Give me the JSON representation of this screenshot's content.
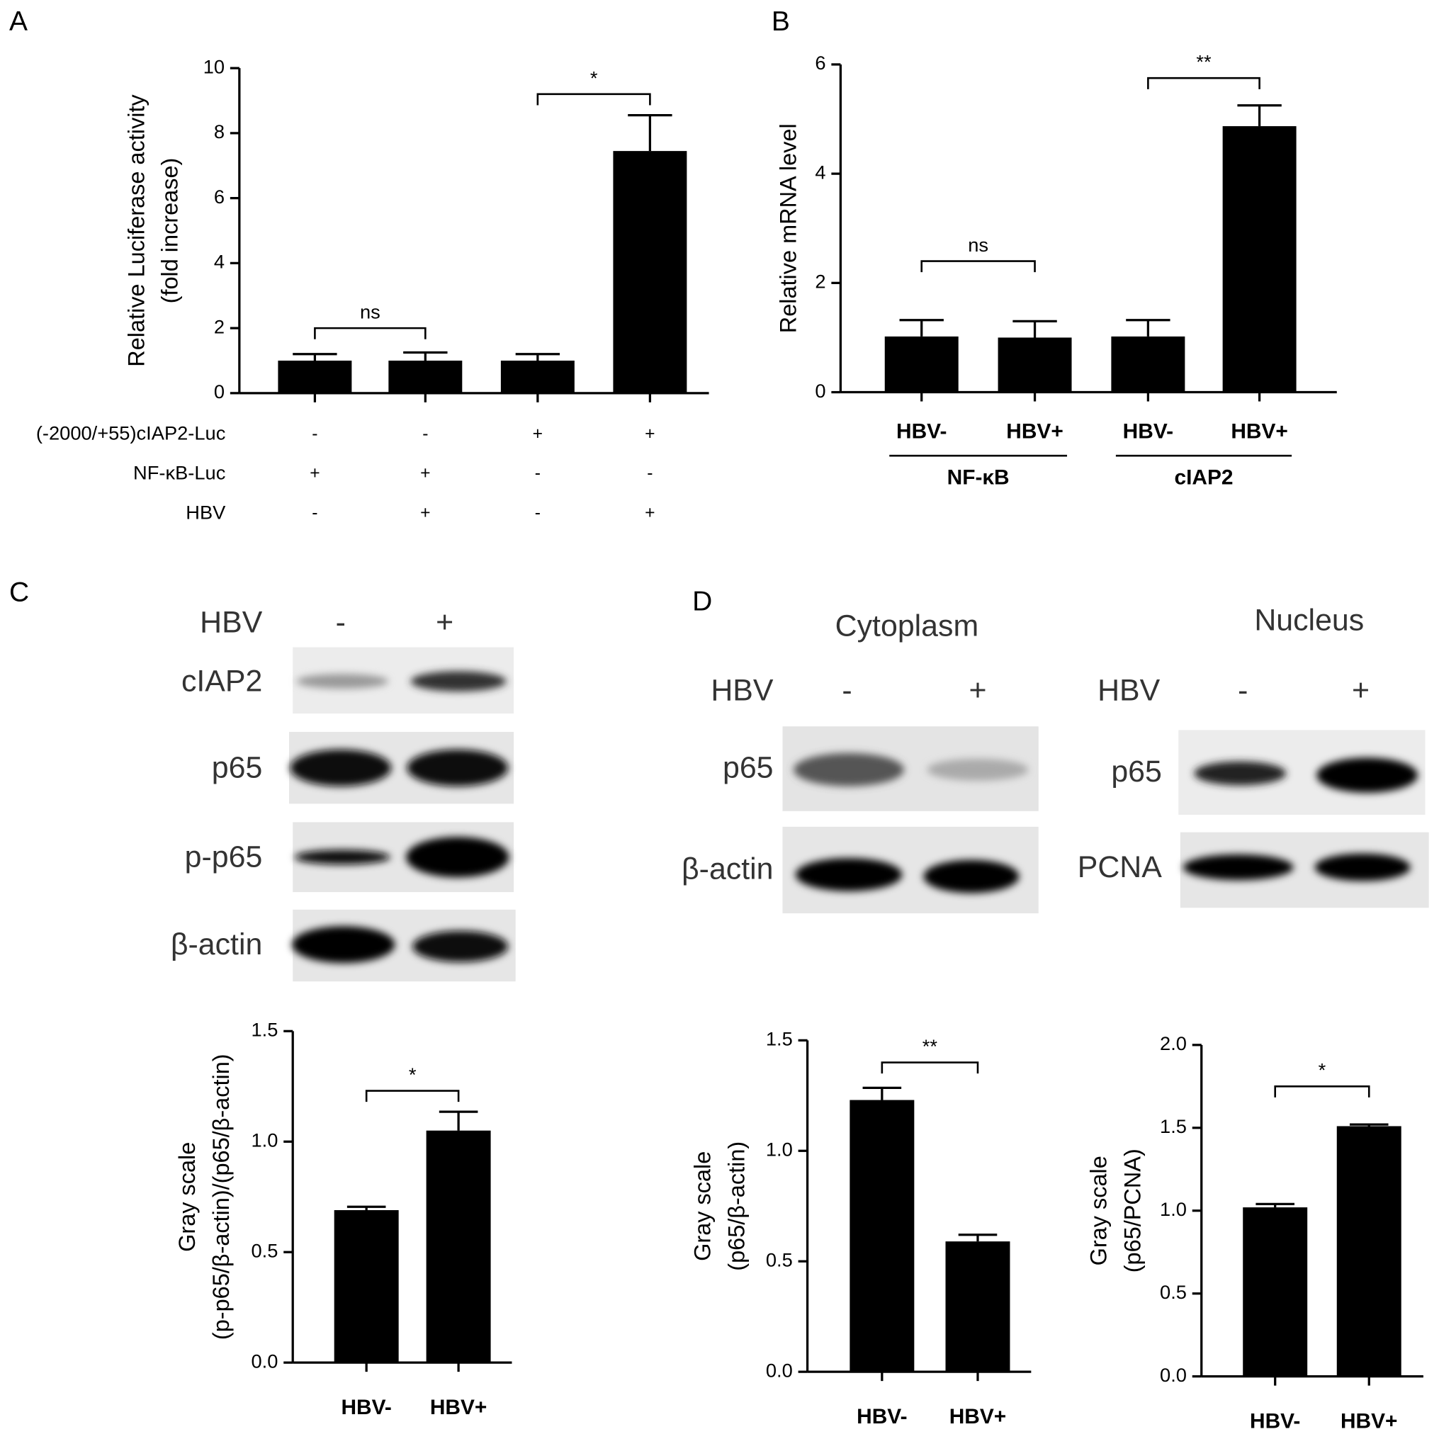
{
  "chart_data": [
    {
      "type": "bar",
      "panel": "A",
      "ylabel": [
        "Relative Luciferase activity",
        "(fold increase)"
      ],
      "values": [
        1.0,
        1.0,
        1.0,
        7.45
      ],
      "errors": [
        0.2,
        0.25,
        0.2,
        1.1
      ],
      "color": "#000000",
      "ylim": [
        0,
        10
      ],
      "yticks": [
        0,
        2,
        4,
        6,
        8,
        10
      ],
      "annotations": [
        "ns",
        "*"
      ],
      "conditions": [
        {
          "label": "(-2000/+55)cIAP2-Luc",
          "signs": [
            "-",
            "-",
            "+",
            "+"
          ]
        },
        {
          "label": "NF-κB-Luc",
          "signs": [
            "+",
            "+",
            "-",
            "-"
          ]
        },
        {
          "label": "HBV",
          "signs": [
            "-",
            "+",
            "-",
            "+"
          ]
        }
      ]
    },
    {
      "type": "bar",
      "panel": "B",
      "ylabel": [
        "Relative mRNA level"
      ],
      "categories": [
        "HBV-",
        "HBV+",
        "HBV-",
        "HBV+"
      ],
      "groups": [
        "NF-κB",
        "cIAP2"
      ],
      "values": [
        1.02,
        1.0,
        1.02,
        4.87
      ],
      "errors": [
        0.3,
        0.3,
        0.3,
        0.38
      ],
      "color": "#000000",
      "ylim": [
        0,
        6
      ],
      "yticks": [
        0,
        2,
        4,
        6
      ],
      "annotations": [
        "ns",
        "**"
      ]
    },
    {
      "type": "bar",
      "ylabel": [
        "Gray scale",
        "(p-p65/β-actin)/(p65/β-actin)"
      ],
      "categories": [
        "HBV-",
        "HBV+"
      ],
      "values": [
        0.69,
        1.05
      ],
      "errors": [
        0.015,
        0.085
      ],
      "color": "#000000",
      "ylim": [
        0,
        1.5
      ],
      "yticks": [
        {
          "value": 0,
          "label": "0.0"
        },
        {
          "value": 0.5,
          "label": "0.5"
        },
        {
          "value": 1,
          "label": "1.0"
        },
        {
          "value": 1.5,
          "label": "1.5"
        }
      ],
      "annotations": [
        "*"
      ]
    },
    {
      "type": "bar",
      "ylabel": [
        "Gray scale",
        "(p65/β-actin)"
      ],
      "categories": [
        "HBV-",
        "HBV+"
      ],
      "values": [
        1.23,
        0.59
      ],
      "errors": [
        0.055,
        0.03
      ],
      "color": "#000000",
      "ylim": [
        0,
        1.5
      ],
      "yticks": [
        {
          "value": 0,
          "label": "0.0"
        },
        {
          "value": 0.5,
          "label": "0.5"
        },
        {
          "value": 1,
          "label": "1.0"
        },
        {
          "value": 1.5,
          "label": "1.5"
        }
      ],
      "annotations": [
        "**"
      ]
    },
    {
      "type": "bar",
      "ylabel": [
        "Gray scale",
        "(p65/PCNA)"
      ],
      "categories": [
        "HBV-",
        "HBV+"
      ],
      "values": [
        1.02,
        1.51
      ],
      "errors": [
        0.02,
        0.01
      ],
      "color": "#000000",
      "ylim": [
        0,
        2
      ],
      "yticks": [
        {
          "value": 0,
          "label": "0.0"
        },
        {
          "value": 0.5,
          "label": "0.5"
        },
        {
          "value": 1,
          "label": "1.0"
        },
        {
          "value": 1.5,
          "label": "1.5"
        },
        {
          "value": 2,
          "label": "2.0"
        }
      ],
      "annotations": [
        "*"
      ]
    }
  ],
  "blot_c": {
    "panel": "C",
    "hbv": "HBV",
    "signs": [
      "-",
      "+"
    ],
    "rows": [
      "cIAP2",
      "p65",
      "p-p65",
      "β-actin"
    ]
  },
  "blot_d": {
    "panel": "D",
    "titles": [
      "Cytoplasm",
      "Nucleus"
    ],
    "hbv": "HBV",
    "signs": [
      "-",
      "+"
    ],
    "rows_left": [
      "p65",
      "β-actin"
    ],
    "rows_right": [
      "p65",
      "PCNA"
    ]
  }
}
